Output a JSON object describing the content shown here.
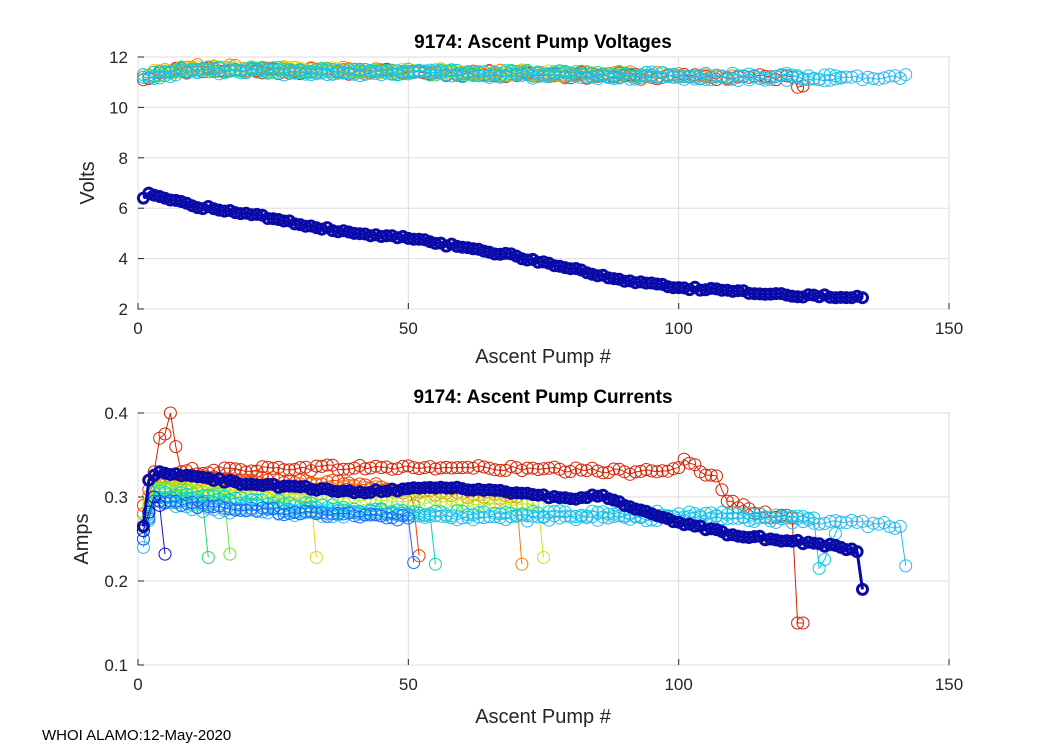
{
  "figure": {
    "footer": "WHOI ALAMO:12-May-2020"
  },
  "colors": {
    "series": [
      "#d62000",
      "#f03a00",
      "#ff7a00",
      "#ffb000",
      "#e6d800",
      "#b6ef20",
      "#66e83a",
      "#22d86a",
      "#00d8a8",
      "#00d0e0",
      "#2ab8f0",
      "#2060ff",
      "#1010d0",
      "#0000a8"
    ],
    "highlight": "#0a0aa8"
  },
  "chart_data": [
    {
      "type": "line",
      "title": "9174: Ascent Pump Voltages",
      "xlabel": "Ascent Pump #",
      "ylabel": "Volts",
      "xlim": [
        0,
        150
      ],
      "ylim": [
        2,
        12
      ],
      "xticks": [
        0,
        50,
        100,
        150
      ],
      "yticks": [
        2,
        4,
        6,
        8,
        10,
        12
      ],
      "grid": true,
      "marker": "circle",
      "series": [
        {
          "name": "red profile",
          "color": "#d62000",
          "n": 123,
          "keypoints": [
            [
              1,
              11.1
            ],
            [
              5,
              11.5
            ],
            [
              50,
              11.4
            ],
            [
              100,
              11.2
            ],
            [
              121,
              11.2
            ],
            [
              122,
              10.8
            ],
            [
              123,
              10.85
            ]
          ]
        },
        {
          "name": "orange profile",
          "color": "#ff7a00",
          "n": 110,
          "keypoints": [
            [
              1,
              11.3
            ],
            [
              10,
              11.6
            ],
            [
              60,
              11.4
            ],
            [
              110,
              11.25
            ]
          ]
        },
        {
          "name": "yellow profile",
          "color": "#e6d800",
          "n": 80,
          "keypoints": [
            [
              1,
              11.3
            ],
            [
              10,
              11.55
            ],
            [
              80,
              11.35
            ]
          ]
        },
        {
          "name": "green profile",
          "color": "#22d86a",
          "n": 95,
          "keypoints": [
            [
              1,
              11.2
            ],
            [
              10,
              11.5
            ],
            [
              95,
              11.3
            ]
          ]
        },
        {
          "name": "teal profile",
          "color": "#00d0e0",
          "n": 130,
          "keypoints": [
            [
              1,
              11.3
            ],
            [
              10,
              11.5
            ],
            [
              130,
              11.2
            ]
          ]
        },
        {
          "name": "light blue profile",
          "color": "#2ab8f0",
          "n": 142,
          "keypoints": [
            [
              1,
              11.2
            ],
            [
              10,
              11.45
            ],
            [
              100,
              11.2
            ],
            [
              141,
              11.15
            ],
            [
              142,
              11.3
            ]
          ]
        },
        {
          "name": "latest profile",
          "color": "#0a0aa8",
          "n": 134,
          "highlight": true,
          "keypoints": [
            [
              1,
              6.4
            ],
            [
              2,
              6.6
            ],
            [
              10,
              6.1
            ],
            [
              20,
              5.8
            ],
            [
              30,
              5.35
            ],
            [
              40,
              5.0
            ],
            [
              50,
              4.8
            ],
            [
              60,
              4.45
            ],
            [
              70,
              4.1
            ],
            [
              80,
              3.6
            ],
            [
              90,
              3.1
            ],
            [
              100,
              2.85
            ],
            [
              110,
              2.7
            ],
            [
              120,
              2.55
            ],
            [
              134,
              2.45
            ]
          ]
        }
      ]
    },
    {
      "type": "line",
      "title": "9174: Ascent Pump Currents",
      "xlabel": "Ascent Pump #",
      "ylabel": "Amps",
      "xlim": [
        0,
        150
      ],
      "ylim": [
        0.1,
        0.4
      ],
      "xticks": [
        0,
        50,
        100,
        150
      ],
      "yticks": [
        0.1,
        0.2,
        0.3,
        0.4
      ],
      "grid": true,
      "marker": "circle",
      "series": [
        {
          "name": "red profile",
          "color": "#d62000",
          "n": 123,
          "keypoints": [
            [
              1,
              0.28
            ],
            [
              2,
              0.32
            ],
            [
              3,
              0.33
            ],
            [
              4,
              0.37
            ],
            [
              5,
              0.375
            ],
            [
              6,
              0.4
            ],
            [
              7,
              0.36
            ],
            [
              8,
              0.33
            ],
            [
              30,
              0.335
            ],
            [
              60,
              0.335
            ],
            [
              90,
              0.33
            ],
            [
              100,
              0.335
            ],
            [
              101,
              0.345
            ],
            [
              104,
              0.33
            ],
            [
              107,
              0.325
            ],
            [
              109,
              0.295
            ],
            [
              115,
              0.28
            ],
            [
              121,
              0.275
            ],
            [
              122,
              0.15
            ],
            [
              123,
              0.15
            ]
          ]
        },
        {
          "name": "orange-red profile",
          "color": "#f03a00",
          "n": 52,
          "keypoints": [
            [
              1,
              0.29
            ],
            [
              3,
              0.325
            ],
            [
              30,
              0.32
            ],
            [
              50,
              0.31
            ],
            [
              51,
              0.29
            ],
            [
              52,
              0.23
            ]
          ]
        },
        {
          "name": "orange profile",
          "color": "#ff7a00",
          "n": 71,
          "keypoints": [
            [
              1,
              0.28
            ],
            [
              3,
              0.32
            ],
            [
              40,
              0.31
            ],
            [
              70,
              0.3
            ],
            [
              71,
              0.22
            ]
          ]
        },
        {
          "name": "yellow profile",
          "color": "#e6d800",
          "n": 33,
          "keypoints": [
            [
              1,
              0.27
            ],
            [
              3,
              0.315
            ],
            [
              20,
              0.305
            ],
            [
              32,
              0.3
            ],
            [
              33,
              0.228
            ]
          ]
        },
        {
          "name": "yellow-green profile",
          "color": "#b6ef20",
          "n": 75,
          "keypoints": [
            [
              1,
              0.27
            ],
            [
              3,
              0.31
            ],
            [
              40,
              0.3
            ],
            [
              74,
              0.29
            ],
            [
              75,
              0.228
            ]
          ]
        },
        {
          "name": "green profile",
          "color": "#66e83a",
          "n": 17,
          "keypoints": [
            [
              1,
              0.26
            ],
            [
              3,
              0.31
            ],
            [
              16,
              0.3
            ],
            [
              17,
              0.232
            ]
          ]
        },
        {
          "name": "teal-green profile",
          "color": "#22d86a",
          "n": 13,
          "keypoints": [
            [
              1,
              0.26
            ],
            [
              3,
              0.3
            ],
            [
              12,
              0.29
            ],
            [
              13,
              0.228
            ]
          ]
        },
        {
          "name": "aqua profile",
          "color": "#00d8a8",
          "n": 55,
          "keypoints": [
            [
              1,
              0.25
            ],
            [
              3,
              0.3
            ],
            [
              30,
              0.285
            ],
            [
              54,
              0.28
            ],
            [
              55,
              0.22
            ]
          ]
        },
        {
          "name": "cyan profile",
          "color": "#00d0e0",
          "n": 130,
          "keypoints": [
            [
              1,
              0.25
            ],
            [
              3,
              0.305
            ],
            [
              50,
              0.28
            ],
            [
              100,
              0.28
            ],
            [
              125,
              0.275
            ],
            [
              126,
              0.215
            ],
            [
              130,
              0.27
            ]
          ]
        },
        {
          "name": "light blue profile",
          "color": "#2ab8f0",
          "n": 142,
          "keypoints": [
            [
              1,
              0.24
            ],
            [
              3,
              0.3
            ],
            [
              10,
              0.285
            ],
            [
              60,
              0.275
            ],
            [
              100,
              0.275
            ],
            [
              130,
              0.27
            ],
            [
              141,
              0.265
            ],
            [
              142,
              0.218
            ]
          ]
        },
        {
          "name": "blue profile",
          "color": "#2060ff",
          "n": 51,
          "keypoints": [
            [
              1,
              0.25
            ],
            [
              3,
              0.295
            ],
            [
              30,
              0.28
            ],
            [
              50,
              0.275
            ],
            [
              51,
              0.222
            ]
          ]
        },
        {
          "name": "navy profile",
          "color": "#1010d0",
          "n": 5,
          "keypoints": [
            [
              1,
              0.26
            ],
            [
              3,
              0.3
            ],
            [
              4,
              0.29
            ],
            [
              5,
              0.232
            ]
          ]
        },
        {
          "name": "latest profile",
          "color": "#0a0aa8",
          "n": 134,
          "highlight": true,
          "keypoints": [
            [
              1,
              0.265
            ],
            [
              2,
              0.32
            ],
            [
              4,
              0.33
            ],
            [
              10,
              0.325
            ],
            [
              20,
              0.315
            ],
            [
              30,
              0.312
            ],
            [
              40,
              0.305
            ],
            [
              50,
              0.31
            ],
            [
              60,
              0.31
            ],
            [
              70,
              0.305
            ],
            [
              80,
              0.298
            ],
            [
              86,
              0.302
            ],
            [
              90,
              0.29
            ],
            [
              95,
              0.28
            ],
            [
              100,
              0.27
            ],
            [
              110,
              0.255
            ],
            [
              120,
              0.248
            ],
            [
              125,
              0.245
            ],
            [
              130,
              0.24
            ],
            [
              133,
              0.235
            ],
            [
              134,
              0.19
            ]
          ]
        }
      ]
    }
  ]
}
